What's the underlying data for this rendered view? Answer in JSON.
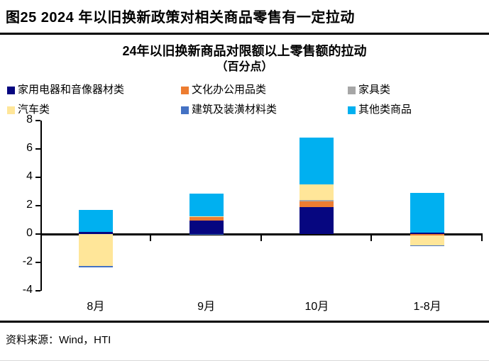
{
  "figure_title": "图25 2024 年以旧换新政策对相关商品零售有一定拉动",
  "chart_title_line1": "24年以旧换新商品对限额以上零售额的拉动",
  "chart_title_line2": "（百分点）",
  "source_text": "资料来源：Wind，HTI",
  "colors": {
    "appliances": "#060680",
    "office_supplies": "#ED7D31",
    "furniture": "#A6A6A6",
    "automobiles": "#FFE699",
    "building_materials": "#4472C4",
    "other_goods": "#00B0F0",
    "axis": "#000000"
  },
  "chart_data": {
    "type": "bar",
    "stacked": true,
    "title": "24年以旧换新商品对限额以上零售额的拉动（百分点）",
    "categories": [
      "8月",
      "9月",
      "10月",
      "1-8月"
    ],
    "series": [
      {
        "name": "家用电器和音像器材类",
        "color": "#060680",
        "values": [
          0.15,
          0.95,
          1.9,
          0.12
        ]
      },
      {
        "name": "文化办公用品类",
        "color": "#ED7D31",
        "values": [
          0,
          0.25,
          0.4,
          -0.08
        ]
      },
      {
        "name": "家具类",
        "color": "#A6A6A6",
        "values": [
          0,
          0,
          0.1,
          0
        ]
      },
      {
        "name": "汽车类",
        "color": "#FFE699",
        "values": [
          -2.25,
          0.05,
          1.1,
          -0.7
        ]
      },
      {
        "name": "建筑及装潢材料类",
        "color": "#4472C4",
        "values": [
          -0.1,
          -0.05,
          0,
          -0.05
        ]
      },
      {
        "name": "其他类商品",
        "color": "#00B0F0",
        "values": [
          1.55,
          1.6,
          3.3,
          2.8
        ]
      }
    ],
    "ylim": [
      -4,
      8
    ],
    "yticks": [
      8,
      6,
      4,
      2,
      0,
      -2,
      -4
    ],
    "xlabel": "",
    "ylabel": "",
    "grid": false,
    "legend_position": "top"
  }
}
